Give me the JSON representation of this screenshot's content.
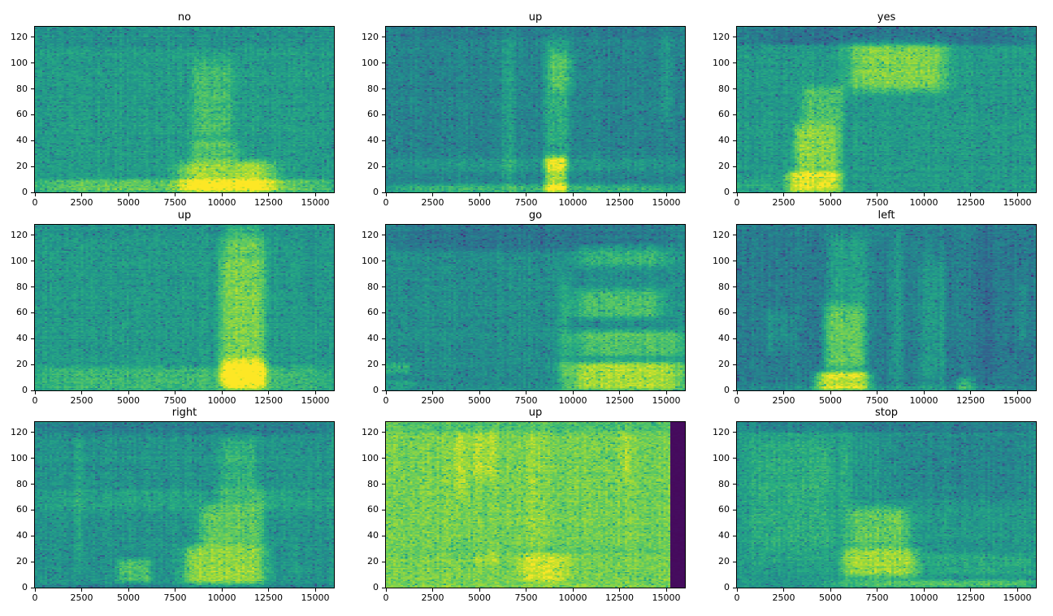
{
  "figure": {
    "background": "#ffffff",
    "axes_border_color": "#000000",
    "text_color": "#000000"
  },
  "chart_data": {
    "type": "heatmap",
    "subtype": "spectrogram-grid",
    "colormap": "viridis",
    "colormap_stops": [
      "#440154",
      "#472c7a",
      "#3b518b",
      "#2c718e",
      "#21908c",
      "#27ad81",
      "#5cc863",
      "#aadc32",
      "#fde725"
    ],
    "grid": {
      "rows": 3,
      "cols": 3
    },
    "xlim": [
      0,
      16000
    ],
    "ylim": [
      0,
      128
    ],
    "x_ticks": [
      "0",
      "2500",
      "5000",
      "7500",
      "10000",
      "12500",
      "15000"
    ],
    "x_tick_values": [
      0,
      2500,
      5000,
      7500,
      10000,
      12500,
      15000
    ],
    "y_ticks": [
      "0",
      "20",
      "40",
      "60",
      "80",
      "100",
      "120"
    ],
    "y_tick_values": [
      0,
      20,
      40,
      60,
      80,
      100,
      120
    ],
    "panels": [
      {
        "title": "no",
        "base": 0.56,
        "features": [
          [
            0,
            16000,
            0,
            10,
            0.2
          ],
          [
            7800,
            12800,
            0,
            24,
            0.3
          ],
          [
            8300,
            10900,
            24,
            40,
            0.15
          ],
          [
            8400,
            10600,
            40,
            102,
            0.14
          ],
          [
            0,
            16000,
            112,
            128,
            -0.05
          ]
        ]
      },
      {
        "title": "up",
        "base": 0.46,
        "features": [
          [
            0,
            16000,
            0,
            6,
            0.22
          ],
          [
            0,
            16000,
            16,
            26,
            0.08
          ],
          [
            6200,
            6900,
            0,
            120,
            0.1
          ],
          [
            8500,
            9700,
            0,
            28,
            0.42
          ],
          [
            8500,
            9800,
            28,
            118,
            0.18
          ],
          [
            8800,
            10100,
            78,
            108,
            0.1
          ],
          [
            14700,
            15300,
            55,
            128,
            0.07
          ],
          [
            0,
            16000,
            120,
            128,
            -0.05
          ]
        ]
      },
      {
        "title": "yes",
        "base": 0.55,
        "features": [
          [
            2700,
            5600,
            0,
            16,
            0.4
          ],
          [
            3100,
            5500,
            16,
            52,
            0.28
          ],
          [
            3500,
            5700,
            52,
            82,
            0.18
          ],
          [
            6000,
            11200,
            78,
            116,
            0.26
          ],
          [
            0,
            2500,
            0,
            10,
            0.06
          ],
          [
            0,
            16000,
            114,
            128,
            -0.16
          ]
        ]
      },
      {
        "title": "up",
        "base": 0.55,
        "features": [
          [
            0,
            16000,
            0,
            18,
            0.13
          ],
          [
            9900,
            12300,
            0,
            112,
            0.26
          ],
          [
            10000,
            12400,
            2,
            24,
            0.22
          ],
          [
            10200,
            12100,
            108,
            128,
            0.1
          ],
          [
            14500,
            14900,
            60,
            128,
            -0.06
          ],
          [
            0,
            16000,
            120,
            128,
            -0.03
          ]
        ]
      },
      {
        "title": "go",
        "base": 0.5,
        "features": [
          [
            0,
            16000,
            108,
            128,
            -0.1
          ],
          [
            0,
            1300,
            13,
            21,
            0.14
          ],
          [
            0,
            1600,
            2,
            8,
            0.1
          ],
          [
            9300,
            9800,
            0,
            88,
            0.1
          ],
          [
            9700,
            16000,
            0,
            22,
            0.38
          ],
          [
            9900,
            16000,
            26,
            46,
            0.22
          ],
          [
            10000,
            14800,
            56,
            78,
            0.2
          ],
          [
            10200,
            15200,
            96,
            112,
            0.15
          ]
        ]
      },
      {
        "title": "left",
        "base": 0.43,
        "features": [
          [
            4200,
            7100,
            0,
            14,
            0.45
          ],
          [
            4700,
            6900,
            14,
            66,
            0.34
          ],
          [
            4900,
            7000,
            66,
            122,
            0.15
          ],
          [
            1600,
            2100,
            28,
            62,
            0.1
          ],
          [
            2300,
            2700,
            32,
            62,
            0.09
          ],
          [
            2900,
            3200,
            18,
            64,
            0.07
          ],
          [
            8200,
            8900,
            0,
            124,
            0.1
          ],
          [
            9800,
            11200,
            0,
            104,
            0.11
          ],
          [
            11800,
            12700,
            0,
            10,
            0.18
          ],
          [
            12800,
            13800,
            0,
            128,
            -0.06
          ],
          [
            15100,
            15500,
            35,
            85,
            0.08
          ],
          [
            0,
            16000,
            0,
            4,
            0.08
          ]
        ]
      },
      {
        "title": "right",
        "base": 0.52,
        "features": [
          [
            0,
            16000,
            118,
            128,
            -0.09
          ],
          [
            0,
            16000,
            60,
            76,
            0.06
          ],
          [
            4400,
            6200,
            4,
            22,
            0.2
          ],
          [
            2200,
            2500,
            18,
            118,
            0.1
          ],
          [
            8000,
            12300,
            2,
            32,
            0.33
          ],
          [
            8800,
            12200,
            32,
            62,
            0.24
          ],
          [
            9800,
            12400,
            62,
            78,
            0.1
          ],
          [
            9900,
            11800,
            76,
            116,
            0.13
          ],
          [
            13800,
            14100,
            10,
            40,
            0.06
          ],
          [
            0,
            16000,
            0,
            2,
            -0.12
          ]
        ]
      },
      {
        "title": "up",
        "base": 0.8,
        "features": [
          [
            3700,
            4300,
            70,
            122,
            0.1
          ],
          [
            4600,
            5900,
            84,
            122,
            0.08
          ],
          [
            4800,
            6000,
            18,
            30,
            0.06
          ],
          [
            7200,
            9800,
            4,
            26,
            0.13
          ],
          [
            7500,
            8400,
            26,
            125,
            0.05
          ],
          [
            12600,
            13000,
            85,
            122,
            0.08
          ],
          [
            0,
            16000,
            120,
            128,
            -0.08
          ],
          [
            0,
            16000,
            26,
            34,
            -0.04
          ]
        ],
        "solid": [
          {
            "x0": 15250,
            "x1": 16000,
            "value": 0.03
          }
        ]
      },
      {
        "title": "stop",
        "base": 0.54,
        "features": [
          [
            0,
            16000,
            120,
            128,
            -0.1
          ],
          [
            8200,
            16000,
            68,
            120,
            -0.07
          ],
          [
            700,
            5200,
            20,
            118,
            0.09
          ],
          [
            5800,
            9600,
            8,
            30,
            0.32
          ],
          [
            6100,
            9200,
            30,
            62,
            0.22
          ],
          [
            5600,
            16000,
            0,
            6,
            0.18
          ],
          [
            5600,
            6100,
            0,
            122,
            0.08
          ],
          [
            10000,
            16000,
            10,
            26,
            0.07
          ]
        ]
      }
    ]
  }
}
